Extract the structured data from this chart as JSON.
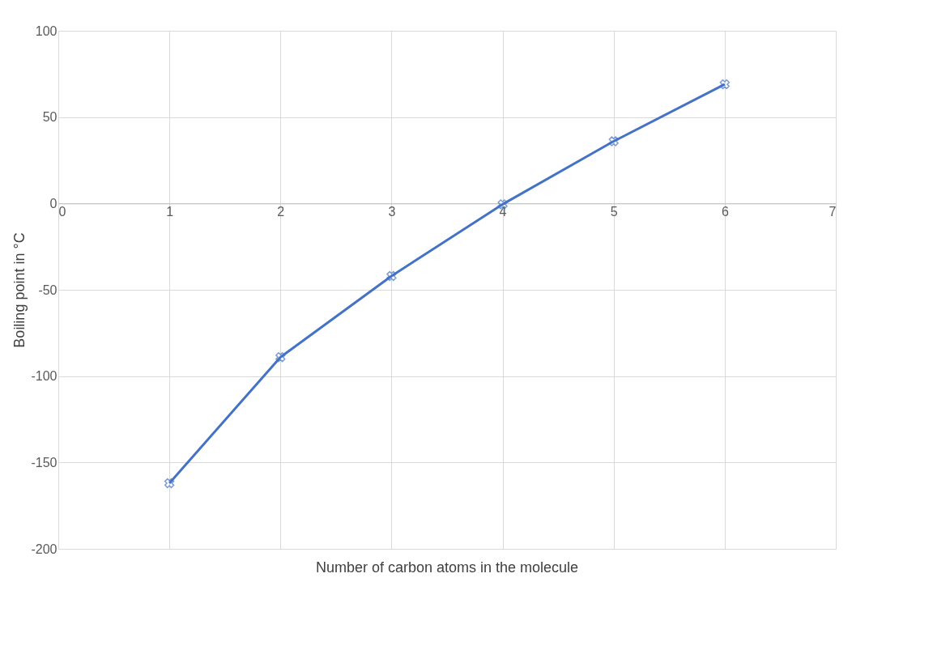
{
  "chart_data": {
    "type": "line",
    "xlabel": "Number of carbon atoms in the molecule",
    "ylabel": "Boiling point in °C",
    "x": [
      1,
      2,
      3,
      4,
      5,
      6
    ],
    "series": [
      {
        "color": "#4472c4",
        "values": [
          -162,
          -89,
          -42,
          -0.5,
          36,
          69
        ]
      }
    ],
    "xlim": [
      0,
      7
    ],
    "xticks": [
      0,
      1,
      2,
      3,
      4,
      5,
      6,
      7
    ],
    "ylim": [
      -200,
      100
    ],
    "yticks": [
      -200,
      -150,
      -100,
      -50,
      0,
      50,
      100
    ],
    "grid": true,
    "marker": "cross",
    "line_style": "solid"
  }
}
